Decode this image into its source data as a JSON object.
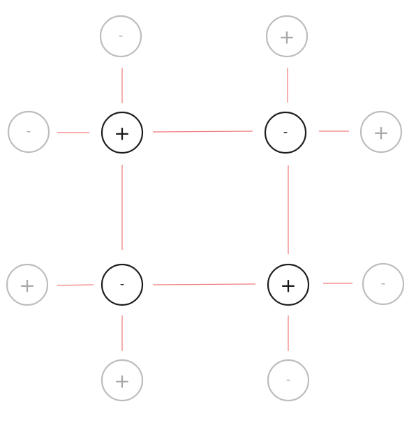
{
  "nodes": {
    "c1": {
      "sign": "+",
      "kind": "main"
    },
    "c2": {
      "sign": "-",
      "kind": "main"
    },
    "c3": {
      "sign": "-",
      "kind": "main"
    },
    "c4": {
      "sign": "+",
      "kind": "main"
    },
    "o1": {
      "sign": "-",
      "kind": "outer"
    },
    "o2": {
      "sign": "+",
      "kind": "outer"
    },
    "o3": {
      "sign": "-",
      "kind": "outer"
    },
    "o4": {
      "sign": "+",
      "kind": "outer"
    },
    "o5": {
      "sign": "+",
      "kind": "outer"
    },
    "o6": {
      "sign": "-",
      "kind": "outer"
    },
    "o7": {
      "sign": "+",
      "kind": "outer"
    },
    "o8": {
      "sign": "-",
      "kind": "outer"
    }
  },
  "links": [
    [
      "c1",
      "c2"
    ],
    [
      "c3",
      "c4"
    ],
    [
      "c1",
      "c3"
    ],
    [
      "c2",
      "c4"
    ],
    [
      "o1",
      "c1"
    ],
    [
      "o3",
      "c1"
    ],
    [
      "o2",
      "c2"
    ],
    [
      "o4",
      "c2"
    ],
    [
      "o5",
      "c3"
    ],
    [
      "o7",
      "c3"
    ],
    [
      "o6",
      "c4"
    ],
    [
      "o8",
      "c4"
    ]
  ],
  "colors": {
    "link": "#f07a7a",
    "main_stroke": "#1e1e1e",
    "outer_stroke": "#bdbdbd",
    "outer_text": "#a9a9a9"
  }
}
